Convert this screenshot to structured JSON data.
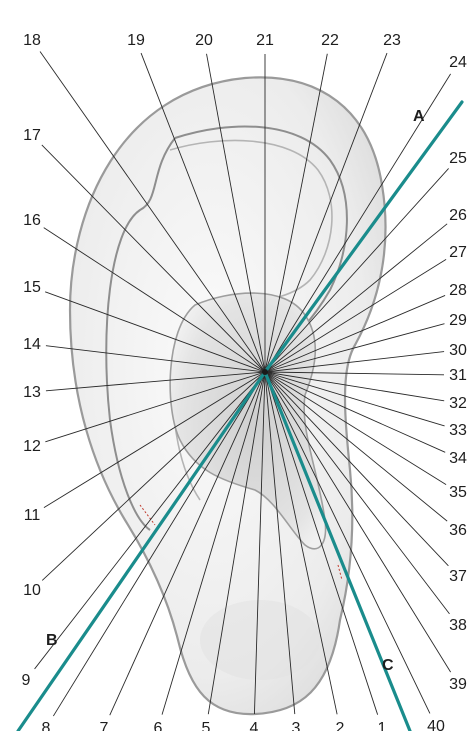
{
  "figure": {
    "zone_numbers": [
      "1",
      "2",
      "3",
      "4",
      "5",
      "6",
      "7",
      "8",
      "9",
      "10",
      "11",
      "12",
      "13",
      "14",
      "15",
      "16",
      "17",
      "18",
      "19",
      "20",
      "21",
      "22",
      "23",
      "24",
      "25",
      "26",
      "27",
      "28",
      "29",
      "30",
      "31",
      "32",
      "33",
      "34",
      "35",
      "36",
      "37",
      "38",
      "39",
      "40"
    ],
    "axis_letters": {
      "a": "A",
      "b": "B",
      "c": "C"
    },
    "colors": {
      "axis": "#1a8c8c",
      "rays": "#2a2a2a",
      "ear_fill": "#efefef",
      "ear_outline": "#9a9a9a"
    }
  }
}
